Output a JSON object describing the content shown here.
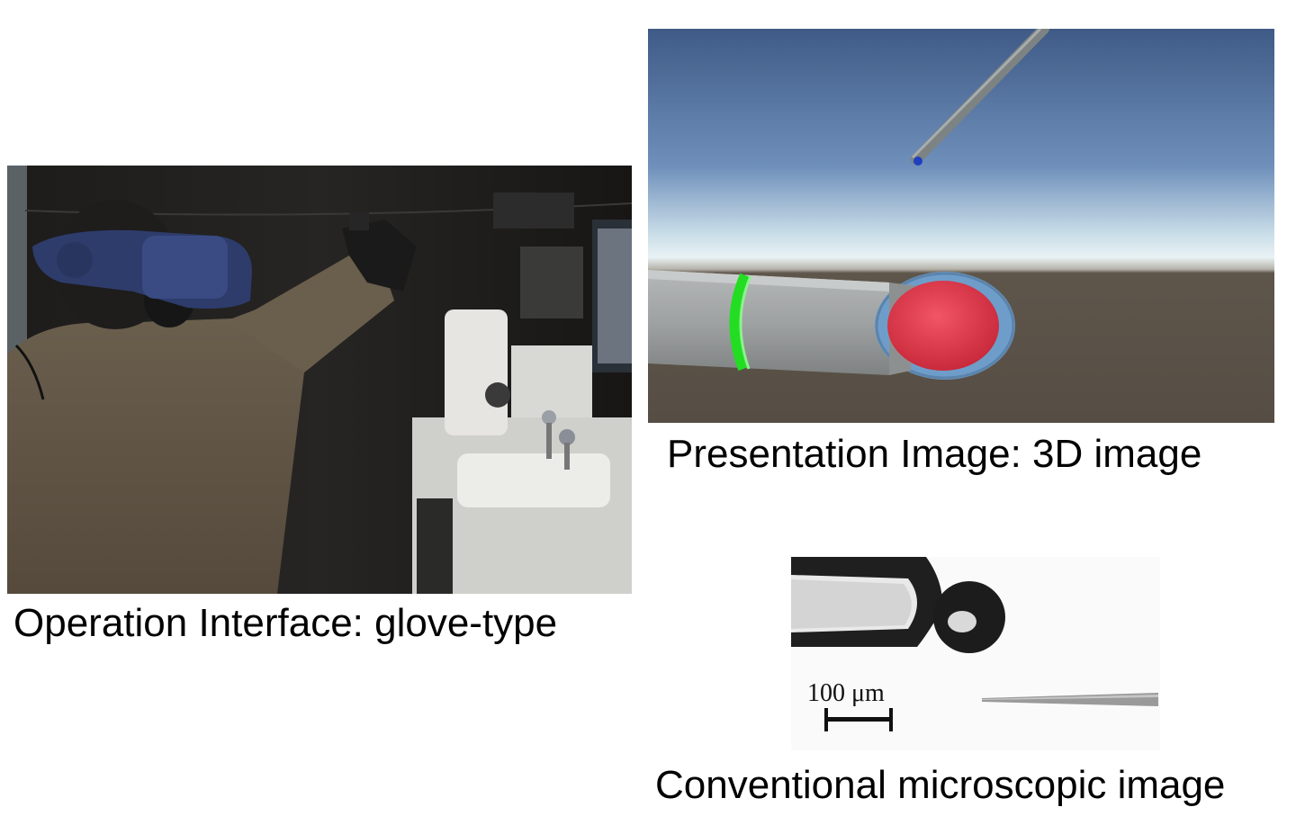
{
  "captions": {
    "operation_interface": "Operation Interface: glove-type",
    "presentation_image": "Presentation Image: 3D image",
    "conventional_image": "Conventional microscopic image"
  },
  "scale_bar": {
    "label": "100 μm"
  },
  "colors": {
    "sky_top": "#3f5a86",
    "sky_horizon": "#e9f2f4",
    "ground": "#5b5148",
    "pipette": "#9b9e9e",
    "cell": "#e2384c",
    "ring": "#22dd22",
    "halo": "#6f9dc9",
    "probe_tip": "#1e3fbf"
  }
}
